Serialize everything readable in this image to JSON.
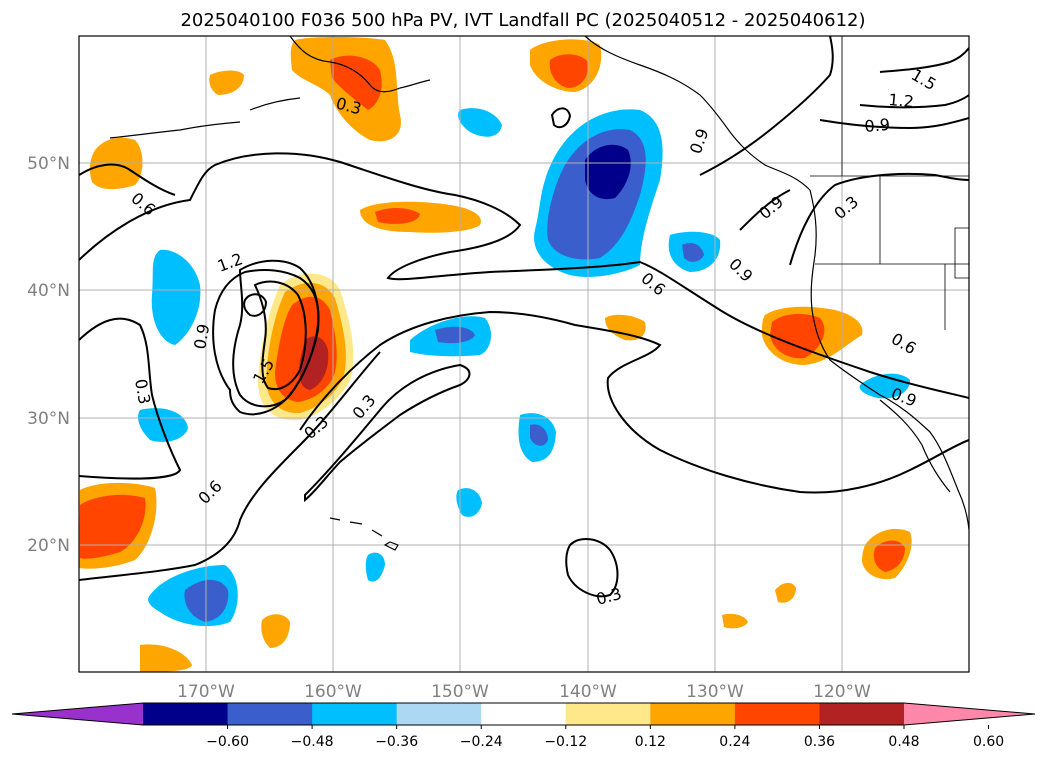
{
  "title": "2025040100 F036 500 hPa PV, IVT Landfall PC (2025040512 - 2025040612)",
  "axes": {
    "lat_labels": [
      "50°N",
      "40°N",
      "30°N",
      "20°N"
    ],
    "lon_labels": [
      "170°W",
      "160°W",
      "150°W",
      "140°W",
      "130°W",
      "120°W"
    ]
  },
  "colorbar": {
    "ticks": [
      "−0.60",
      "−0.48",
      "−0.36",
      "−0.24",
      "−0.12",
      "0.12",
      "0.24",
      "0.36",
      "0.48",
      "0.60"
    ],
    "colors": [
      "#9932cc",
      "#00008b",
      "#3a5fcd",
      "#00bfff",
      "#add8f4",
      "#ffffff",
      "#ffe88a",
      "#ffa500",
      "#ff4500",
      "#b22222",
      "#ff88aa"
    ]
  },
  "contour_labels": [
    "0.3",
    "0.6",
    "0.9",
    "1.2",
    "1.5"
  ],
  "map": {
    "lat_range": [
      10,
      60
    ],
    "lon_range": [
      -180,
      -110
    ],
    "fill_colors": {
      "light_blue": "#add8f4",
      "cyan": "#00bfff",
      "royal_blue": "#3a5fcd",
      "navy": "#00008b",
      "yellow": "#ffe88a",
      "orange": "#ffa500",
      "red_orange": "#ff4500",
      "dark_red": "#b22222"
    }
  }
}
